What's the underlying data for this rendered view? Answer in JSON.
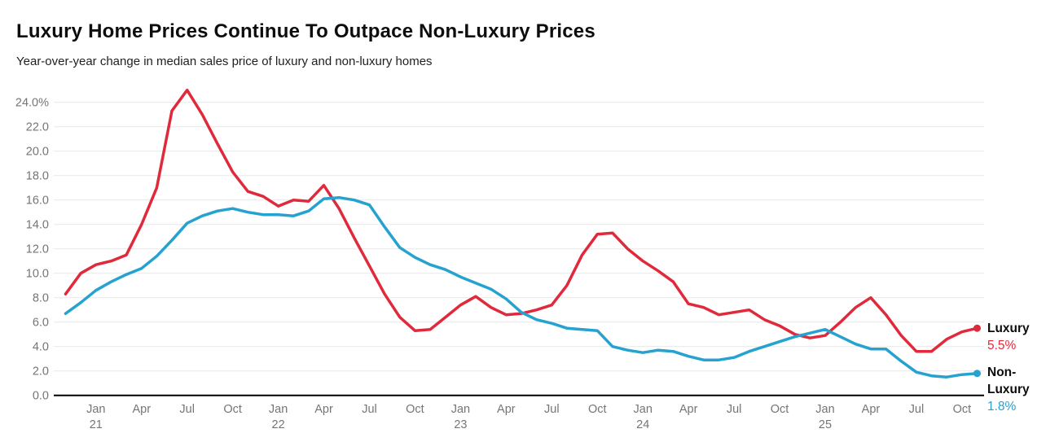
{
  "header": {
    "title": "Luxury Home Prices Continue To Outpace Non-Luxury Prices",
    "subtitle": "Year-over-year change in median sales price of luxury and non-luxury homes"
  },
  "colors": {
    "luxury": "#e02a3c",
    "non_luxury": "#25a2cf",
    "grid": "#e7e7e7",
    "axis": "#000000",
    "tick_text": "#757575",
    "label_text": "#0d0d0d"
  },
  "chart_data": {
    "type": "line",
    "title": "Luxury Home Prices Continue To Outpace Non-Luxury Prices",
    "subtitle": "Year-over-year change in median sales price of luxury and non-luxury homes",
    "xlabel": "",
    "ylabel": "",
    "ylim": [
      0,
      24
    ],
    "y_tick_step": 2,
    "grid": "horizontal",
    "legend_position": "right-end-labels",
    "x_unit": "month",
    "y_tick_labels": [
      "24.0%",
      "22.0",
      "20.0",
      "18.0",
      "16.0",
      "14.0",
      "12.0",
      "10.0",
      "8.0",
      "6.0",
      "4.0",
      "2.0",
      "0.0"
    ],
    "x_ticks": [
      {
        "i": 2,
        "line1": "Jan",
        "line2": "21"
      },
      {
        "i": 5,
        "line1": "Apr"
      },
      {
        "i": 8,
        "line1": "Jul"
      },
      {
        "i": 11,
        "line1": "Oct"
      },
      {
        "i": 14,
        "line1": "Jan",
        "line2": "22"
      },
      {
        "i": 17,
        "line1": "Apr"
      },
      {
        "i": 20,
        "line1": "Jul"
      },
      {
        "i": 23,
        "line1": "Oct"
      },
      {
        "i": 26,
        "line1": "Jan",
        "line2": "23"
      },
      {
        "i": 29,
        "line1": "Apr"
      },
      {
        "i": 32,
        "line1": "Jul"
      },
      {
        "i": 35,
        "line1": "Oct"
      },
      {
        "i": 38,
        "line1": "Jan",
        "line2": "24"
      },
      {
        "i": 41,
        "line1": "Apr"
      },
      {
        "i": 44,
        "line1": "Jul"
      },
      {
        "i": 47,
        "line1": "Oct"
      },
      {
        "i": 50,
        "line1": "Jan",
        "line2": "25"
      },
      {
        "i": 53,
        "line1": "Apr"
      },
      {
        "i": 56,
        "line1": "Jul"
      },
      {
        "i": 59,
        "line1": "Oct"
      }
    ],
    "series": [
      {
        "name": "Luxury",
        "color": "#e02a3c",
        "end_label_lines": [
          "Luxury"
        ],
        "end_value_label": "5.5%",
        "values": [
          8.3,
          10.0,
          10.7,
          11.0,
          11.5,
          14.0,
          17.0,
          23.3,
          25.0,
          23.0,
          20.6,
          18.3,
          16.7,
          16.3,
          15.5,
          16.0,
          15.9,
          17.2,
          15.3,
          12.9,
          10.6,
          8.3,
          6.4,
          5.3,
          5.4,
          6.4,
          7.4,
          8.1,
          7.2,
          6.6,
          6.7,
          7.0,
          7.4,
          9.0,
          11.5,
          13.2,
          13.3,
          12.0,
          11.0,
          10.2,
          9.3,
          7.5,
          7.2,
          6.6,
          6.8,
          7.0,
          6.2,
          5.7,
          5.0,
          4.7,
          4.9,
          6.0,
          7.2,
          8.0,
          6.6,
          4.9,
          3.6,
          3.6,
          4.6,
          5.2,
          5.5
        ]
      },
      {
        "name": "Non-Luxury",
        "color": "#25a2cf",
        "end_label_lines": [
          "Non-",
          "Luxury"
        ],
        "end_value_label": "1.8%",
        "values": [
          6.7,
          7.6,
          8.6,
          9.3,
          9.9,
          10.4,
          11.4,
          12.7,
          14.1,
          14.7,
          15.1,
          15.3,
          15.0,
          14.8,
          14.8,
          14.7,
          15.1,
          16.1,
          16.2,
          16.0,
          15.6,
          13.8,
          12.1,
          11.3,
          10.7,
          10.3,
          9.7,
          9.2,
          8.7,
          7.9,
          6.8,
          6.2,
          5.9,
          5.5,
          5.4,
          5.3,
          4.0,
          3.7,
          3.5,
          3.7,
          3.6,
          3.2,
          2.9,
          2.9,
          3.1,
          3.6,
          4.0,
          4.4,
          4.8,
          5.1,
          5.4,
          4.8,
          4.2,
          3.8,
          3.8,
          2.8,
          1.9,
          1.6,
          1.5,
          1.7,
          1.8
        ]
      }
    ]
  }
}
